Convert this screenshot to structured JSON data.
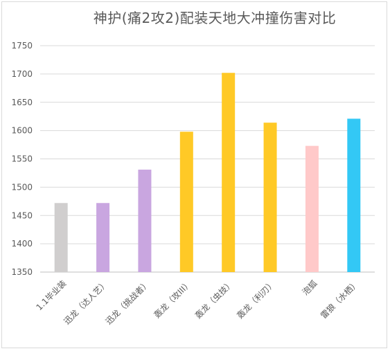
{
  "chart_data": {
    "type": "bar",
    "title": "神护(痛2攻2)配装天地大冲撞伤害对比",
    "xlabel": "",
    "ylabel": "",
    "ylim": [
      1350,
      1750
    ],
    "yticks": [
      1350,
      1400,
      1450,
      1500,
      1550,
      1600,
      1650,
      1700,
      1750
    ],
    "grid": true,
    "categories": [
      "1.1毕业装",
      "迅龙（达人艺）",
      "迅龙（挑战者）",
      "轰龙（攻III）",
      "轰龙（虫技）",
      "轰龙（利刃）",
      "泡狐",
      "雷狼（水栖）"
    ],
    "values": [
      1472,
      1472,
      1531,
      1598,
      1702,
      1614,
      1573,
      1621
    ],
    "colors": [
      "#d0cece",
      "#c9a6e0",
      "#c9a6e0",
      "#ffc926",
      "#ffc926",
      "#ffc926",
      "#ffc9c9",
      "#33c8f5"
    ]
  }
}
